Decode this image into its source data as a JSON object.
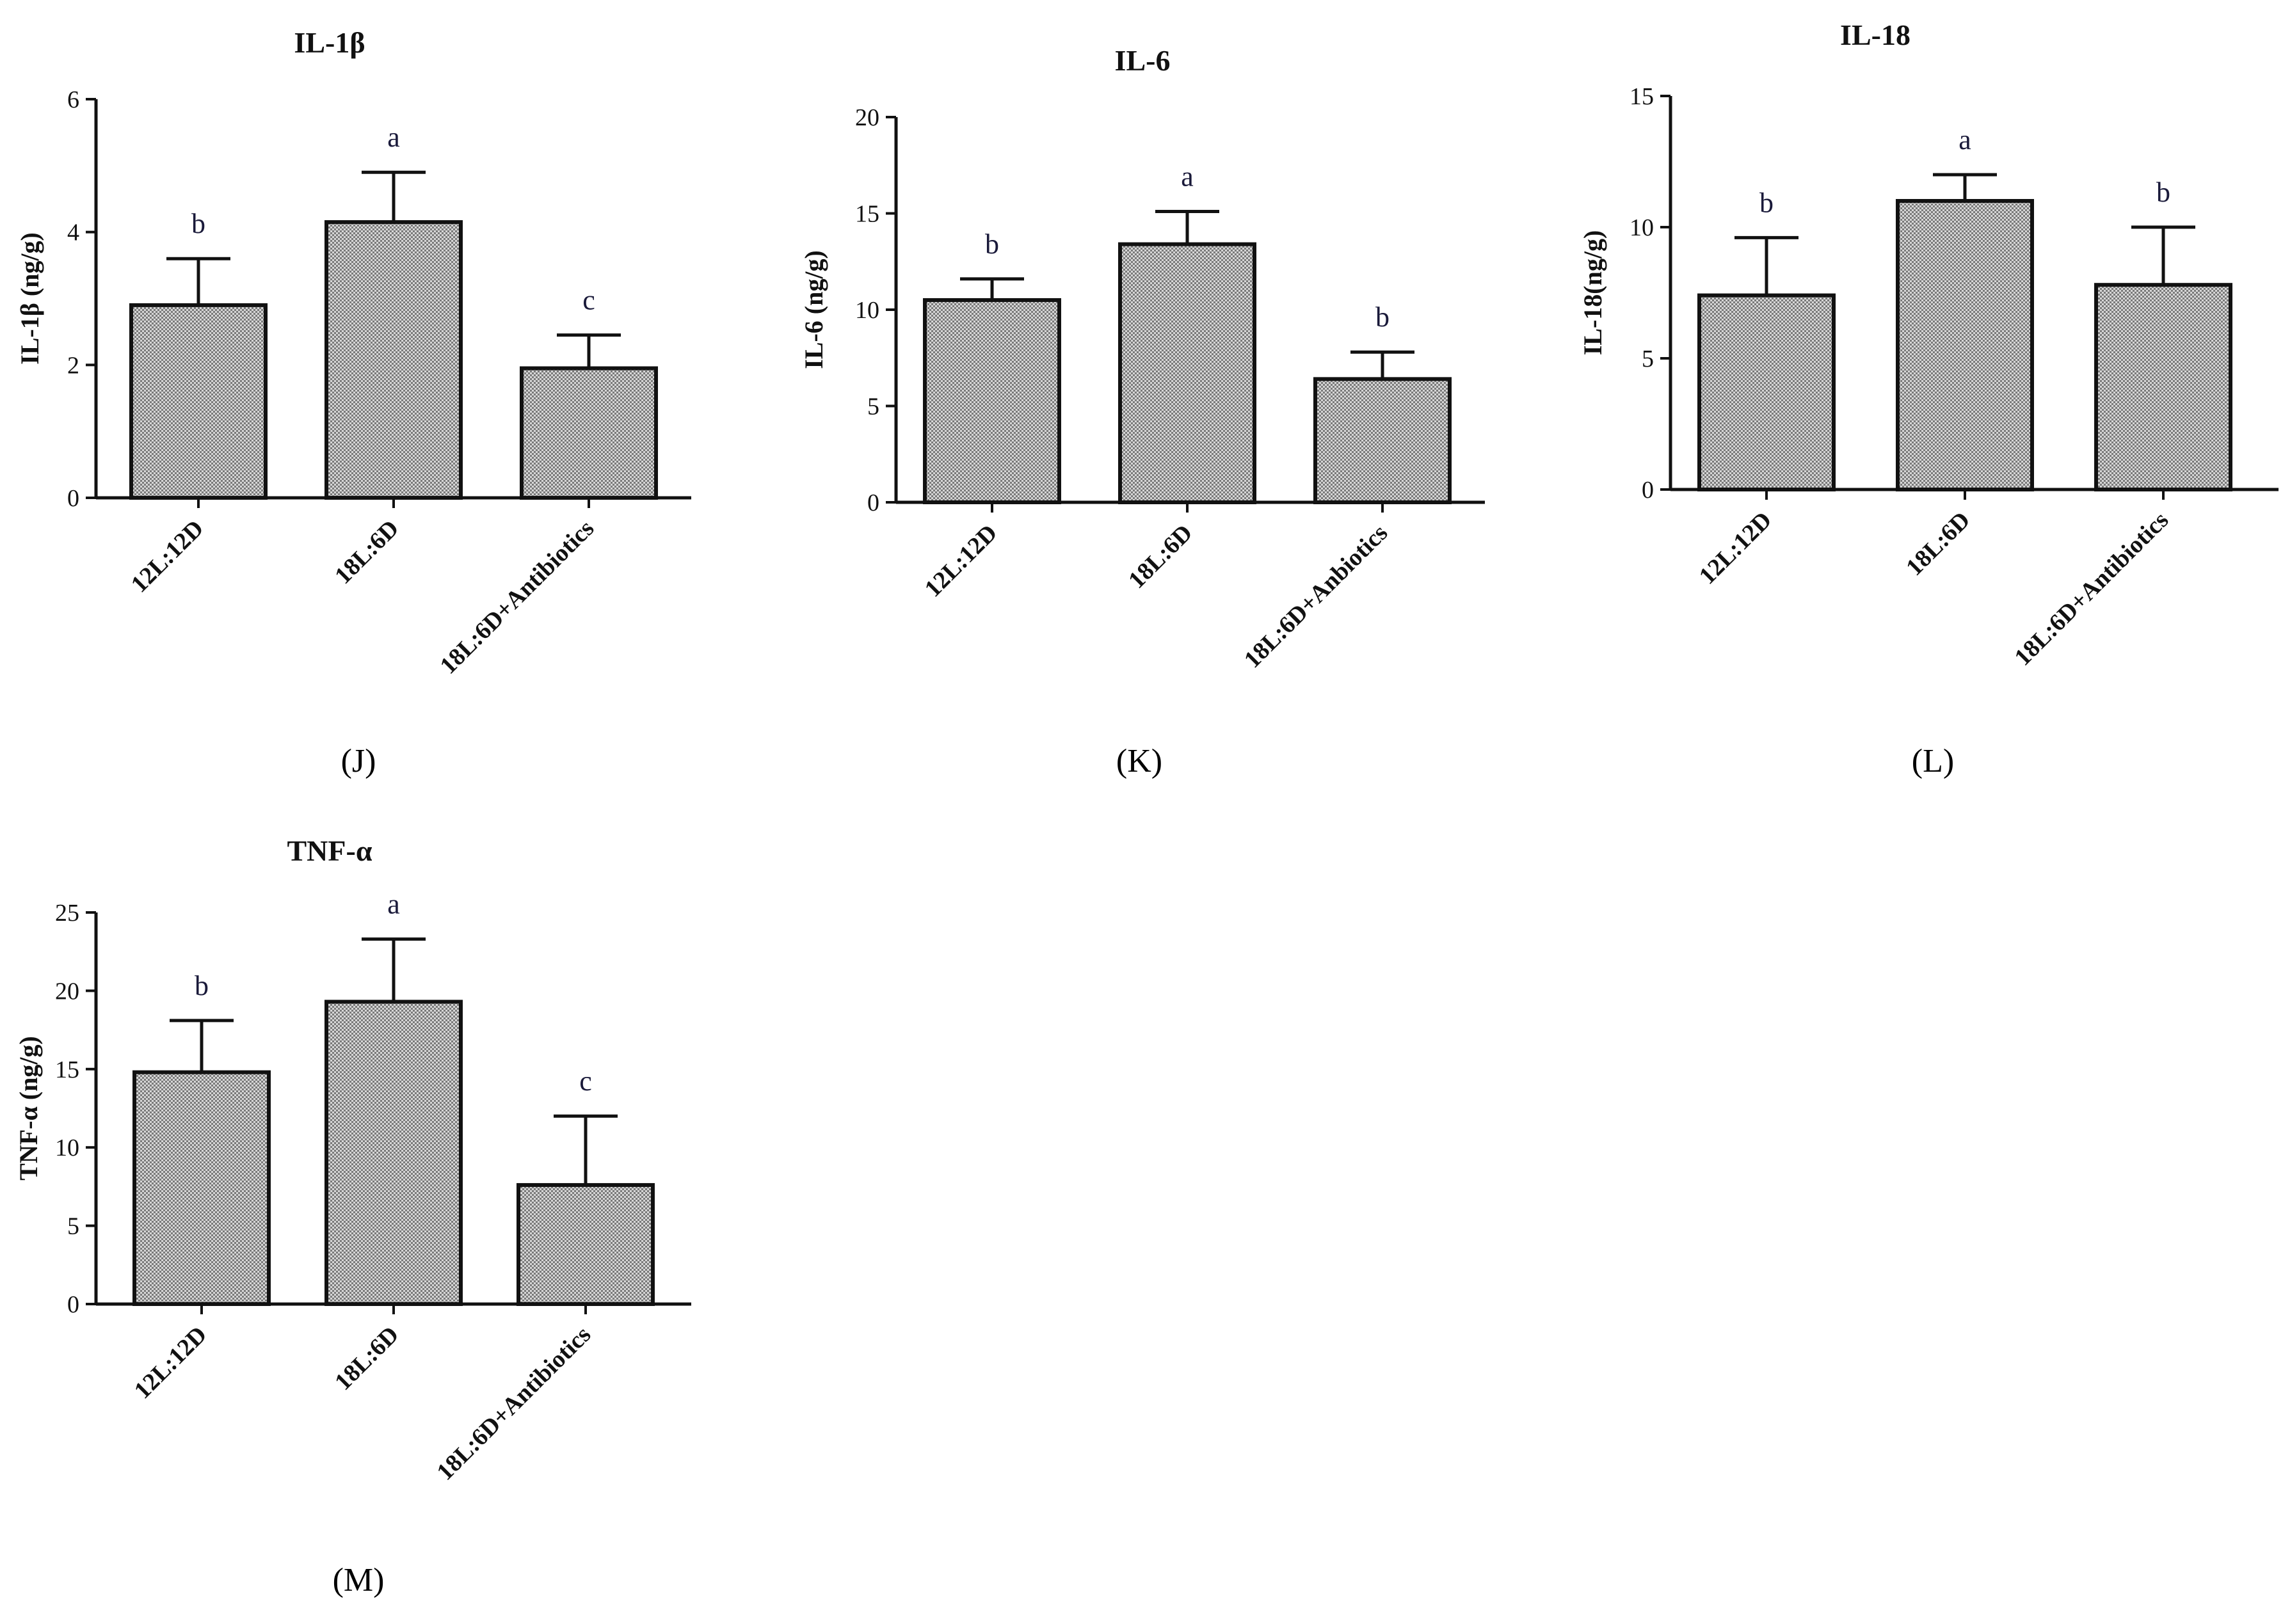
{
  "chart_data": [
    {
      "type": "bar",
      "id": "J",
      "panel_label": "(J)",
      "title": "IL-1β",
      "ylabel": "IL-1β  (ng/g)",
      "categories": [
        "12L:12D",
        "18L:6D",
        "18L:6D+Antibiotics"
      ],
      "values": [
        2.9,
        4.15,
        1.95
      ],
      "errors": [
        0.7,
        0.75,
        0.5
      ],
      "letters": [
        "b",
        "a",
        "c"
      ],
      "ylim": [
        0,
        6
      ],
      "yticks": [
        0,
        2,
        4,
        6
      ]
    },
    {
      "type": "bar",
      "id": "K",
      "panel_label": "(K)",
      "title": "IL-6",
      "ylabel": "IL-6 (ng/g)",
      "categories": [
        "12L:12D",
        "18L:6D",
        "18L:6D+Anbiotics"
      ],
      "values": [
        10.5,
        13.4,
        6.4
      ],
      "errors": [
        1.1,
        1.7,
        1.4
      ],
      "letters": [
        "b",
        "a",
        "b"
      ],
      "ylim": [
        0,
        20
      ],
      "yticks": [
        0,
        5,
        10,
        15,
        20
      ]
    },
    {
      "type": "bar",
      "id": "L",
      "panel_label": "(L)",
      "title": "IL-18",
      "ylabel": "IL-18(ng/g)",
      "categories": [
        "12L:12D",
        "18L:6D",
        "18L:6D+Antibiotics"
      ],
      "values": [
        7.4,
        11.0,
        7.8
      ],
      "errors": [
        2.2,
        1.0,
        2.2
      ],
      "letters": [
        "b",
        "a",
        "b"
      ],
      "ylim": [
        0,
        15
      ],
      "yticks": [
        0,
        5,
        10,
        15
      ]
    },
    {
      "type": "bar",
      "id": "M",
      "panel_label": "(M)",
      "title": "TNF-α",
      "ylabel": "TNF-α  (ng/g)",
      "categories": [
        "12L:12D",
        "18L:6D",
        "18L:6D+Antibiotics"
      ],
      "values": [
        14.8,
        19.3,
        7.6
      ],
      "errors": [
        3.3,
        4.0,
        4.4
      ],
      "letters": [
        "b",
        "a",
        "c"
      ],
      "ylim": [
        0,
        25
      ],
      "yticks": [
        0,
        5,
        10,
        15,
        20,
        25
      ]
    }
  ],
  "colors": {
    "bar_fill": "#7a7a7a",
    "bar_dot": "#d6d6d6",
    "stroke": "#111111",
    "letter": "#1a1a3a"
  }
}
